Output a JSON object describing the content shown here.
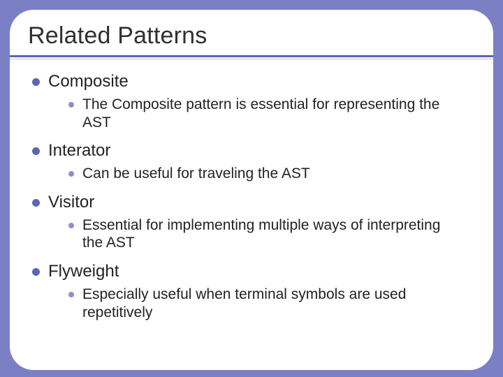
{
  "colors": {
    "slide_bg": "#7a80c3",
    "card_bg": "#ffffff",
    "rule_main": "#5b65b5",
    "rule_thin": "#b7bbe0",
    "bullet_main": "#5b65b5",
    "bullet_sub": "#8a91cf",
    "text": "#222222"
  },
  "typography": {
    "title_fontsize": 34,
    "item_fontsize": 24,
    "subitem_fontsize": 21,
    "font_family": "Arial"
  },
  "layout": {
    "slide_width": 720,
    "slide_height": 540,
    "card_radius": 34,
    "card_inset": 14
  },
  "title": "Related Patterns",
  "items": [
    {
      "label": "Composite",
      "sub": [
        {
          "label": "The Composite pattern is essential for representing the AST"
        }
      ]
    },
    {
      "label": "Interator",
      "sub": [
        {
          "label": "Can be useful for traveling the AST"
        }
      ]
    },
    {
      "label": "Visitor",
      "sub": [
        {
          "label": "Essential for implementing multiple ways of interpreting the AST"
        }
      ]
    },
    {
      "label": "Flyweight",
      "sub": [
        {
          "label": "Especially useful when terminal symbols are used repetitively"
        }
      ]
    }
  ]
}
